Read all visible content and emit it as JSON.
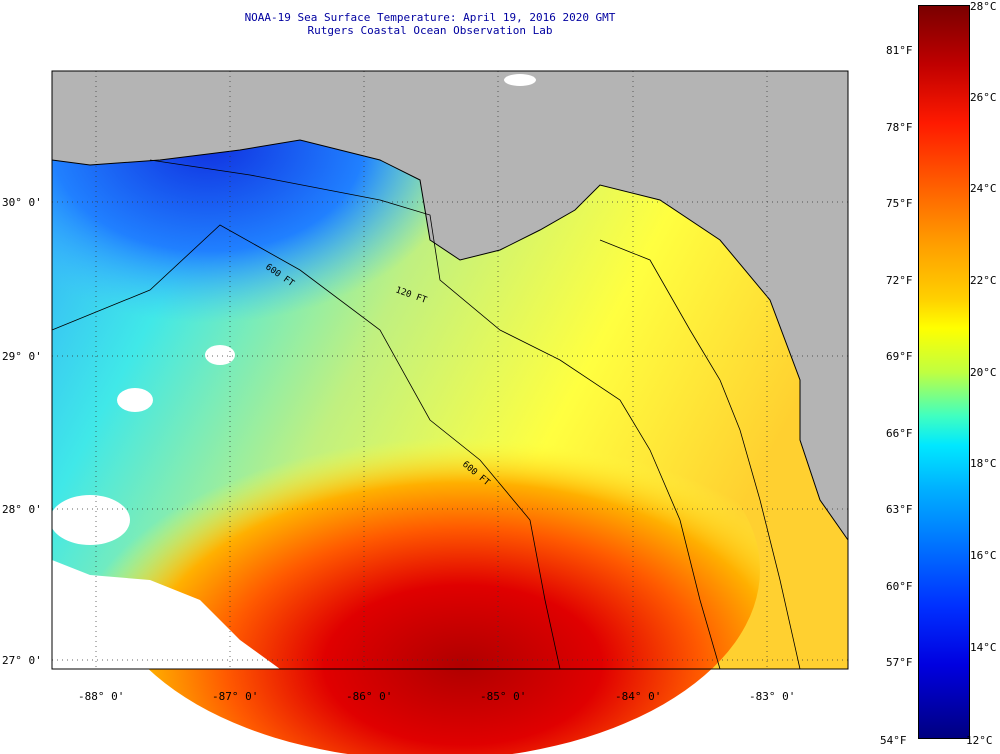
{
  "title": "NOAA-19 Sea Surface Temperature:  April 19, 2016 2020 GMT",
  "subtitle": "Rutgers Coastal Ocean Observation Lab",
  "lat_labels": [
    "30° 0'",
    "29° 0'",
    "28° 0'",
    "27° 0'"
  ],
  "lon_labels": [
    "-88° 0'",
    "-87° 0'",
    "-86° 0'",
    "-85° 0'",
    "-84° 0'",
    "-83° 0'"
  ],
  "isobath_labels": [
    "600 FT",
    "120 FT",
    "600 FT"
  ],
  "colorbar": {
    "celsius": [
      "28°C",
      "26°C",
      "24°C",
      "22°C",
      "20°C",
      "18°C",
      "16°C",
      "14°C",
      "12°C"
    ],
    "fahrenheit": [
      "81°F",
      "78°F",
      "75°F",
      "72°F",
      "69°F",
      "66°F",
      "63°F",
      "60°F",
      "57°F",
      "54°F"
    ],
    "range_c": [
      12,
      28
    ]
  },
  "colors": {
    "land": "#b4b4b4",
    "warm_core": "#c00000",
    "cold_nearshore": "#1040ff",
    "title": "#0000a0"
  }
}
